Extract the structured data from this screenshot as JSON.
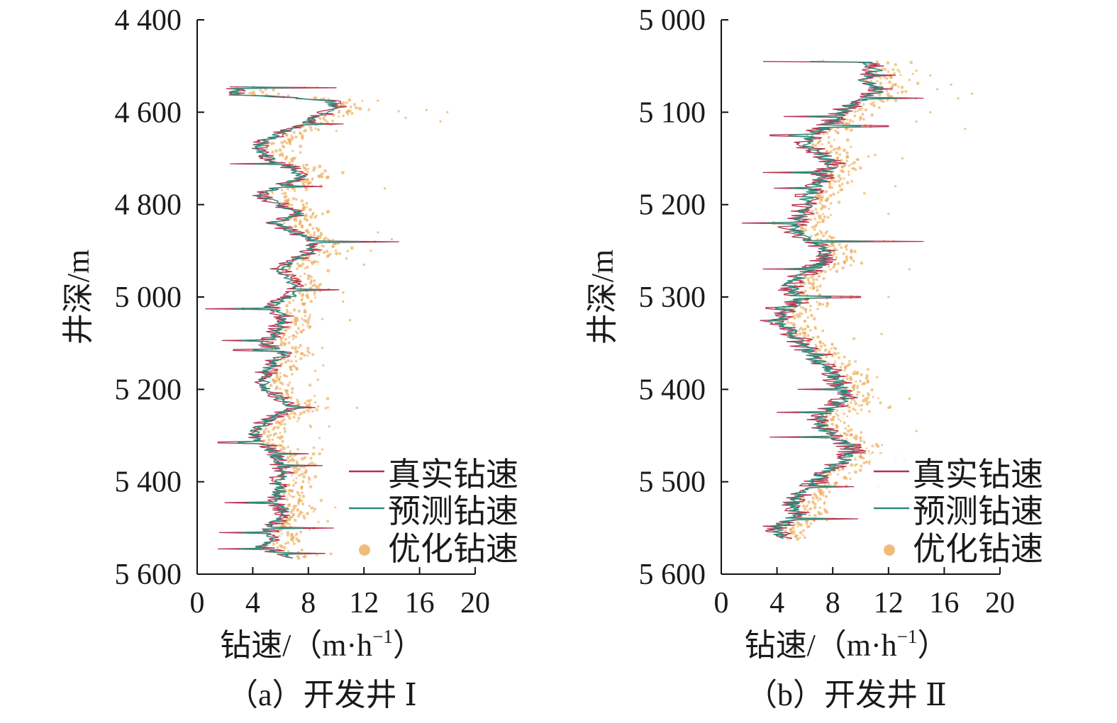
{
  "chart_data": [
    {
      "type": "line",
      "panel_label": "（a）开发井 Ⅰ",
      "xlabel": "钻速/（m·h",
      "xlabel_sup": "−1",
      "xlabel_tail": "）",
      "ylabel": "井深/m",
      "xlim": [
        0,
        20
      ],
      "ylim": [
        4400,
        5600
      ],
      "y_inverted": true,
      "xticks": [
        0,
        4,
        8,
        12,
        16,
        20
      ],
      "yticks": [
        4400,
        4600,
        4800,
        5000,
        5200,
        5400,
        5600
      ],
      "ytick_labels": [
        "4 400",
        "4 600",
        "4 800",
        "5 000",
        "5 200",
        "5 400",
        "5 600"
      ],
      "depth_range": [
        4545,
        5565
      ],
      "legend": [
        "真实钻速",
        "预测钻速",
        "优化钻速"
      ],
      "legend_position": "bottom-right",
      "series": [
        {
          "name": "真实钻速",
          "kind": "line",
          "color": "#b5314f"
        },
        {
          "name": "预测钻速",
          "kind": "line",
          "color": "#2e8b7c"
        },
        {
          "name": "优化钻速",
          "kind": "scatter",
          "color": "#eca64c"
        }
      ],
      "trend": [
        [
          4545,
          3.0
        ],
        [
          4560,
          2.6
        ],
        [
          4575,
          9.5
        ],
        [
          4590,
          10.0
        ],
        [
          4605,
          9.0
        ],
        [
          4620,
          8.0
        ],
        [
          4640,
          6.5
        ],
        [
          4660,
          5.0
        ],
        [
          4680,
          4.2
        ],
        [
          4700,
          5.2
        ],
        [
          4720,
          6.8
        ],
        [
          4740,
          7.5
        ],
        [
          4760,
          6.0
        ],
        [
          4780,
          4.5
        ],
        [
          4800,
          6.0
        ],
        [
          4820,
          7.5
        ],
        [
          4840,
          5.5
        ],
        [
          4860,
          7.0
        ],
        [
          4880,
          8.5
        ],
        [
          4900,
          8.2
        ],
        [
          4920,
          7.0
        ],
        [
          4940,
          6.0
        ],
        [
          4960,
          6.5
        ],
        [
          4980,
          7.2
        ],
        [
          5000,
          6.8
        ],
        [
          5020,
          5.0
        ],
        [
          5040,
          6.2
        ],
        [
          5060,
          6.0
        ],
        [
          5080,
          5.5
        ],
        [
          5100,
          4.8
        ],
        [
          5120,
          6.2
        ],
        [
          5140,
          5.5
        ],
        [
          5160,
          5.0
        ],
        [
          5180,
          4.8
        ],
        [
          5200,
          5.0
        ],
        [
          5220,
          6.0
        ],
        [
          5240,
          7.0
        ],
        [
          5260,
          5.5
        ],
        [
          5280,
          4.5
        ],
        [
          5300,
          4.0
        ],
        [
          5320,
          5.0
        ],
        [
          5340,
          5.5
        ],
        [
          5360,
          6.0
        ],
        [
          5380,
          6.2
        ],
        [
          5400,
          5.8
        ],
        [
          5420,
          6.0
        ],
        [
          5440,
          5.5
        ],
        [
          5460,
          6.2
        ],
        [
          5480,
          6.0
        ],
        [
          5500,
          5.0
        ],
        [
          5520,
          5.5
        ],
        [
          5540,
          4.5
        ],
        [
          5555,
          6.0
        ],
        [
          5565,
          6.5
        ]
      ],
      "noise": 0.8,
      "spikes": [
        [
          4547,
          10.0
        ],
        [
          4563,
          2.3
        ],
        [
          4625,
          10.5
        ],
        [
          4712,
          2.4
        ],
        [
          4760,
          9.0
        ],
        [
          4880,
          14.5
        ],
        [
          4910,
          7.8
        ],
        [
          4985,
          10.2
        ],
        [
          5025,
          0.6
        ],
        [
          5095,
          1.8
        ],
        [
          5115,
          2.6
        ],
        [
          5240,
          8.5
        ],
        [
          5315,
          1.5
        ],
        [
          5340,
          8.0
        ],
        [
          5365,
          9.0
        ],
        [
          5445,
          2.0
        ],
        [
          5500,
          9.8
        ],
        [
          5510,
          1.6
        ],
        [
          5545,
          1.5
        ],
        [
          5555,
          9.2
        ]
      ],
      "scatter_extra": [
        [
          4595,
          16.5
        ],
        [
          4598,
          14.5
        ],
        [
          4600,
          18.0
        ],
        [
          4612,
          15.0
        ],
        [
          4620,
          17.5
        ],
        [
          4575,
          13.0
        ],
        [
          4765,
          13.5
        ],
        [
          4860,
          13.0
        ],
        [
          4875,
          14.0
        ],
        [
          4900,
          12.5
        ],
        [
          4930,
          12.0
        ],
        [
          5010,
          10.5
        ],
        [
          5050,
          11.0
        ],
        [
          5110,
          9.0
        ],
        [
          5160,
          8.5
        ],
        [
          5240,
          11.5
        ],
        [
          5280,
          9.5
        ],
        [
          5330,
          9.0
        ]
      ]
    },
    {
      "type": "line",
      "panel_label": "（b）开发井 Ⅱ",
      "xlabel": "钻速/（m·h",
      "xlabel_sup": "−1",
      "xlabel_tail": "）",
      "ylabel": "井深/m",
      "xlim": [
        0,
        20
      ],
      "ylim": [
        5000,
        5600
      ],
      "y_inverted": true,
      "xticks": [
        0,
        4,
        8,
        12,
        16,
        20
      ],
      "yticks": [
        5000,
        5100,
        5200,
        5300,
        5400,
        5500,
        5600
      ],
      "ytick_labels": [
        "5 000",
        "5 100",
        "5 200",
        "5 300",
        "5 400",
        "5 500",
        "5 600"
      ],
      "depth_range": [
        5045,
        5562
      ],
      "legend": [
        "真实钻速",
        "预测钻速",
        "优化钻速"
      ],
      "legend_position": "bottom-right",
      "series": [
        {
          "name": "真实钻速",
          "kind": "line",
          "color": "#b5314f"
        },
        {
          "name": "预测钻速",
          "kind": "line",
          "color": "#2e8b7c"
        },
        {
          "name": "优化钻速",
          "kind": "scatter",
          "color": "#eca64c"
        }
      ],
      "trend": [
        [
          5045,
          10.5
        ],
        [
          5055,
          11.0
        ],
        [
          5065,
          10.0
        ],
        [
          5075,
          11.5
        ],
        [
          5085,
          10.5
        ],
        [
          5095,
          9.0
        ],
        [
          5105,
          8.5
        ],
        [
          5115,
          7.5
        ],
        [
          5125,
          6.5
        ],
        [
          5135,
          6.0
        ],
        [
          5145,
          7.0
        ],
        [
          5155,
          8.0
        ],
        [
          5165,
          7.5
        ],
        [
          5175,
          7.0
        ],
        [
          5185,
          6.5
        ],
        [
          5195,
          6.0
        ],
        [
          5205,
          6.0
        ],
        [
          5215,
          5.5
        ],
        [
          5225,
          5.0
        ],
        [
          5235,
          6.0
        ],
        [
          5245,
          7.0
        ],
        [
          5255,
          7.5
        ],
        [
          5265,
          7.0
        ],
        [
          5275,
          6.0
        ],
        [
          5285,
          5.0
        ],
        [
          5295,
          5.0
        ],
        [
          5305,
          5.5
        ],
        [
          5315,
          4.5
        ],
        [
          5325,
          4.0
        ],
        [
          5335,
          4.8
        ],
        [
          5345,
          5.5
        ],
        [
          5355,
          6.0
        ],
        [
          5365,
          6.5
        ],
        [
          5375,
          7.5
        ],
        [
          5385,
          8.0
        ],
        [
          5395,
          8.5
        ],
        [
          5405,
          9.0
        ],
        [
          5415,
          8.5
        ],
        [
          5425,
          7.5
        ],
        [
          5435,
          7.0
        ],
        [
          5445,
          7.5
        ],
        [
          5455,
          8.5
        ],
        [
          5465,
          9.5
        ],
        [
          5475,
          9.0
        ],
        [
          5485,
          8.0
        ],
        [
          5495,
          7.0
        ],
        [
          5505,
          6.5
        ],
        [
          5515,
          5.5
        ],
        [
          5525,
          5.0
        ],
        [
          5535,
          5.5
        ],
        [
          5545,
          4.5
        ],
        [
          5555,
          4.0
        ],
        [
          5562,
          4.5
        ]
      ],
      "noise": 1.0,
      "spikes": [
        [
          5045,
          3.0
        ],
        [
          5060,
          12.5
        ],
        [
          5085,
          14.5
        ],
        [
          5105,
          4.5
        ],
        [
          5115,
          12.0
        ],
        [
          5125,
          3.5
        ],
        [
          5165,
          3.0
        ],
        [
          5182,
          3.8
        ],
        [
          5220,
          1.5
        ],
        [
          5240,
          14.5
        ],
        [
          5270,
          3.0
        ],
        [
          5300,
          10.0
        ],
        [
          5312,
          3.2
        ],
        [
          5325,
          2.8
        ],
        [
          5362,
          8.0
        ],
        [
          5400,
          5.5
        ],
        [
          5425,
          4.0
        ],
        [
          5452,
          3.5
        ],
        [
          5460,
          10.0
        ],
        [
          5505,
          9.5
        ],
        [
          5540,
          9.8
        ],
        [
          5548,
          3.0
        ]
      ],
      "scatter_extra": [
        [
          5055,
          14.0
        ],
        [
          5060,
          15.0
        ],
        [
          5065,
          13.5
        ],
        [
          5070,
          16.5
        ],
        [
          5085,
          17.0
        ],
        [
          5080,
          18.0
        ],
        [
          5075,
          15.5
        ],
        [
          5100,
          15.0
        ],
        [
          5118,
          17.5
        ],
        [
          5110,
          14.0
        ],
        [
          5150,
          13.0
        ],
        [
          5180,
          12.5
        ],
        [
          5210,
          12.0
        ],
        [
          5270,
          13.5
        ],
        [
          5300,
          12.0
        ],
        [
          5340,
          11.5
        ],
        [
          5410,
          13.5
        ],
        [
          5420,
          12.0
        ],
        [
          5445,
          14.0
        ],
        [
          5475,
          12.5
        ]
      ]
    }
  ]
}
